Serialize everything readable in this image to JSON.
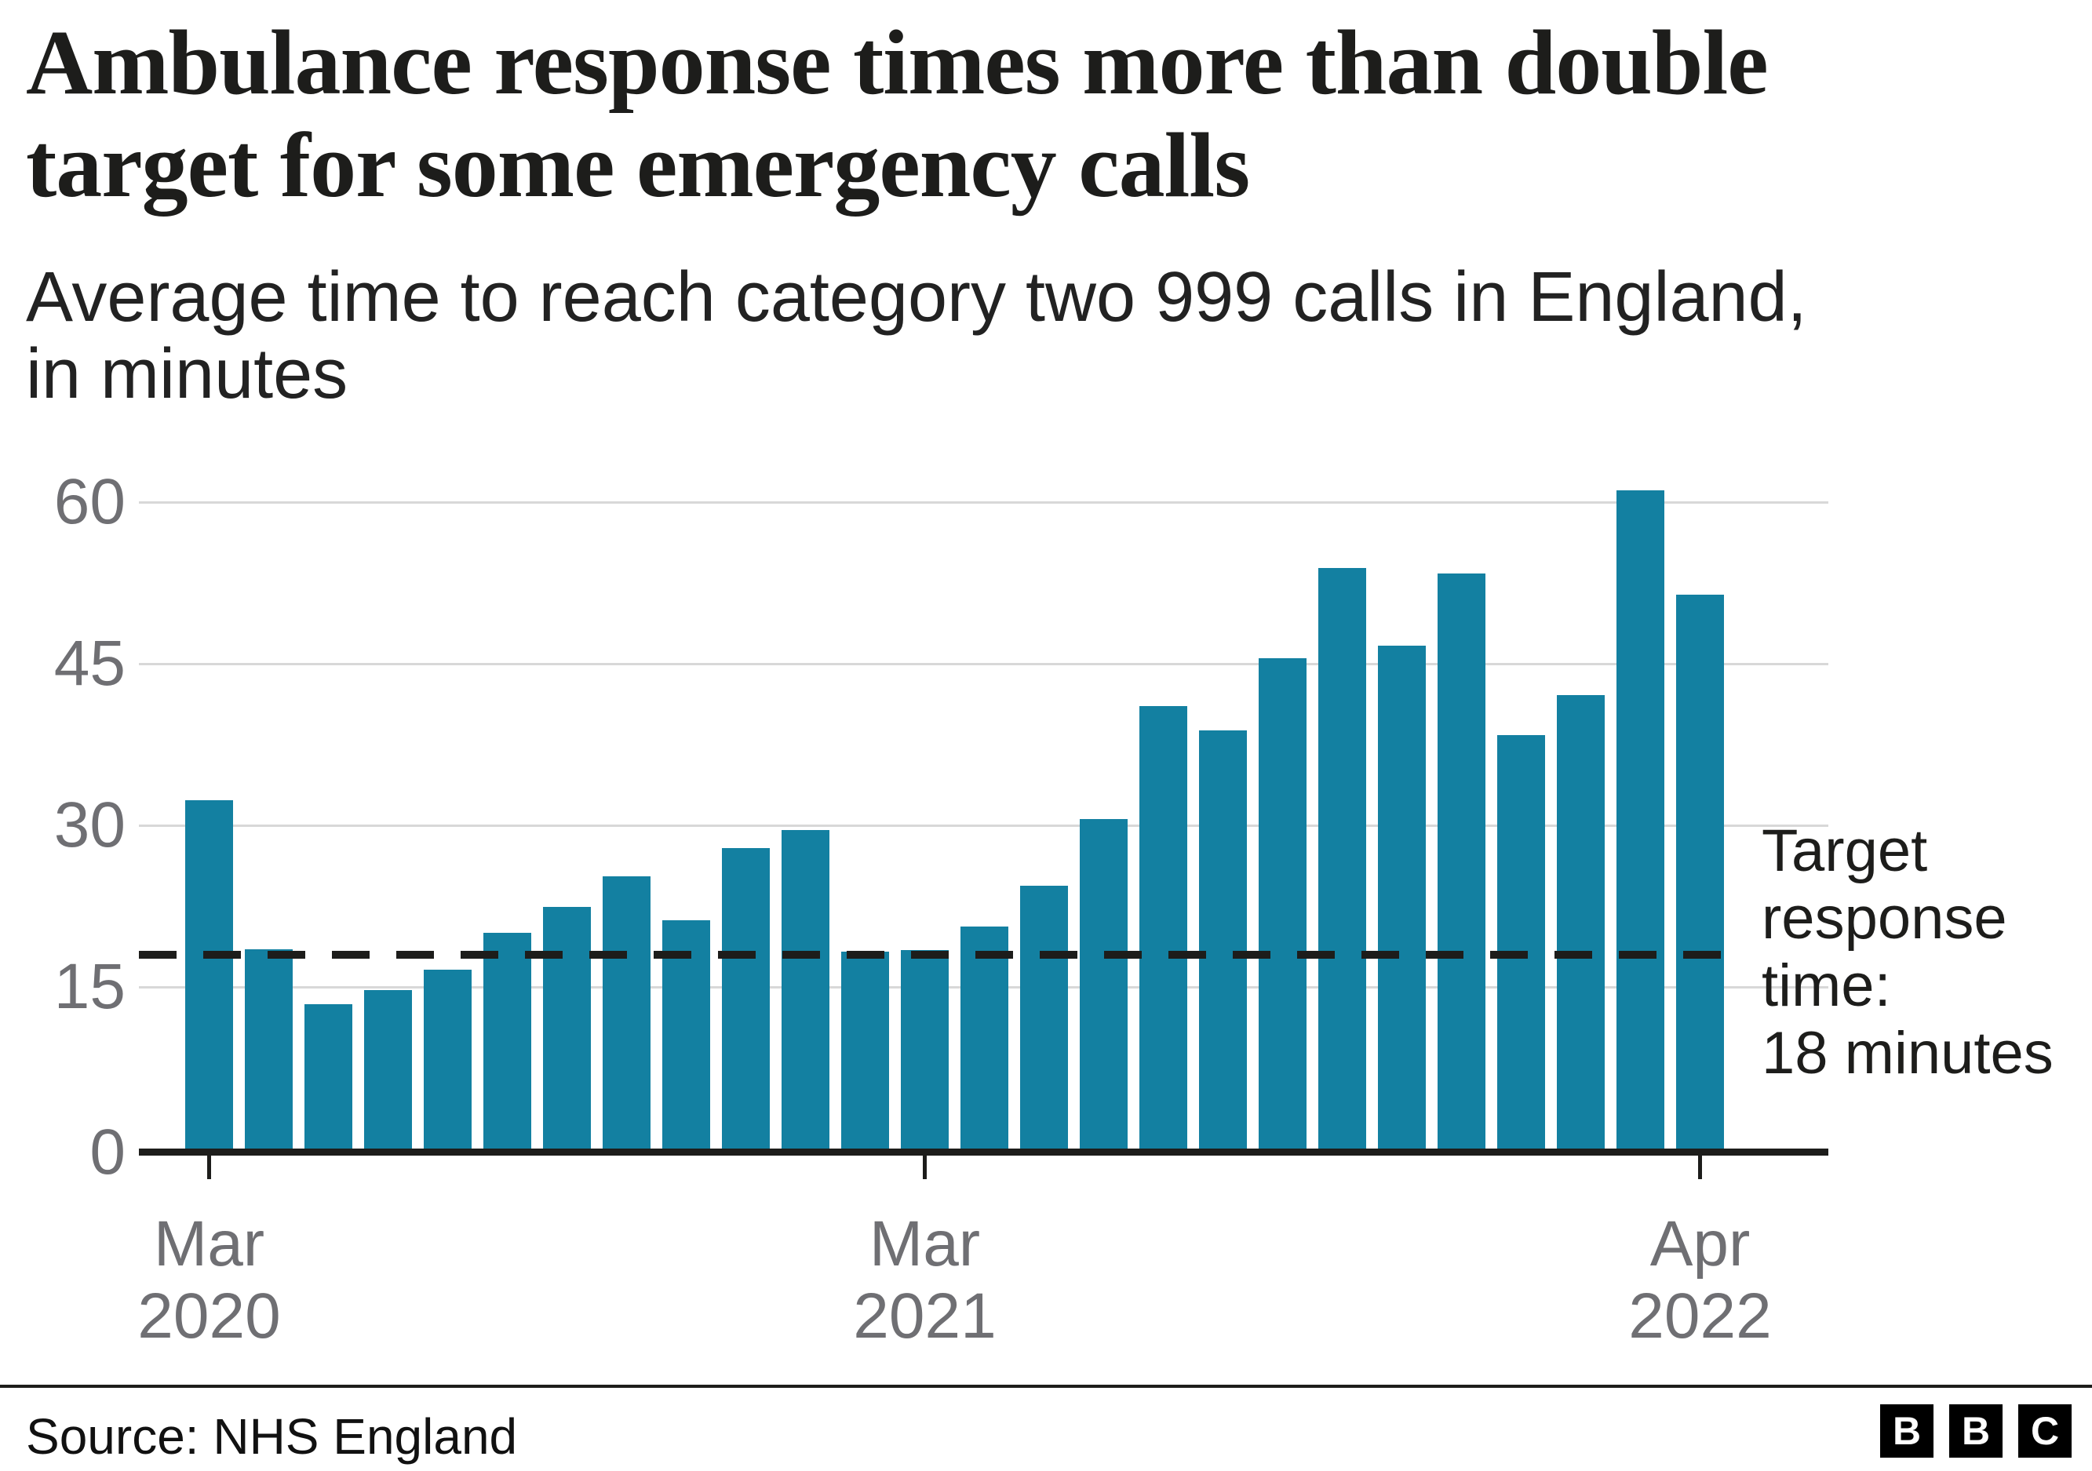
{
  "title": {
    "line1": "Ambulance response times more than double",
    "line2": "target for some emergency calls"
  },
  "subtitle": {
    "line1": "Average time to reach category two 999 calls in England,",
    "line2": "in minutes"
  },
  "chart_data": {
    "type": "bar",
    "title": "Ambulance response times more than double target for some emergency calls",
    "subtitle": "Average time to reach category two 999 calls in England, in minutes",
    "ylabel": "minutes",
    "ylim": [
      0,
      60
    ],
    "yticks": [
      0,
      15,
      30,
      45,
      60
    ],
    "grid": true,
    "bar_color": "#1380a1",
    "gridline_color": "#d8d8d8",
    "axis_color": "#1d1d1b",
    "categories": [
      "Mar 2020",
      "Apr 2020",
      "May 2020",
      "Jun 2020",
      "Jul 2020",
      "Aug 2020",
      "Sep 2020",
      "Oct 2020",
      "Nov 2020",
      "Dec 2020",
      "Jan 2021",
      "Feb 2021",
      "Mar 2021",
      "Apr 2021",
      "May 2021",
      "Jun 2021",
      "Jul 2021",
      "Aug 2021",
      "Sep 2021",
      "Oct 2021",
      "Nov 2021",
      "Dec 2021",
      "Jan 2022",
      "Feb 2022",
      "Mar 2022",
      "Apr 2022"
    ],
    "values": [
      32.3,
      18.5,
      13.4,
      14.7,
      16.6,
      20.0,
      22.4,
      25.3,
      21.2,
      27.9,
      29.6,
      18.3,
      18.4,
      20.6,
      24.4,
      30.6,
      41.1,
      38.8,
      45.5,
      53.9,
      46.7,
      53.4,
      38.4,
      42.1,
      61.1,
      51.4
    ],
    "x_axis_ticks": [
      {
        "index": 0,
        "line1": "Mar",
        "line2": "2020"
      },
      {
        "index": 12,
        "line1": "Mar",
        "line2": "2021"
      },
      {
        "index": 25,
        "line1": "Apr",
        "line2": "2022"
      }
    ],
    "target_line": {
      "value": 18,
      "label_lines": [
        "Target",
        "response",
        "time:",
        "18 minutes"
      ]
    }
  },
  "footer": {
    "source": "Source: NHS England",
    "logo_letters": [
      "B",
      "B",
      "C"
    ]
  }
}
